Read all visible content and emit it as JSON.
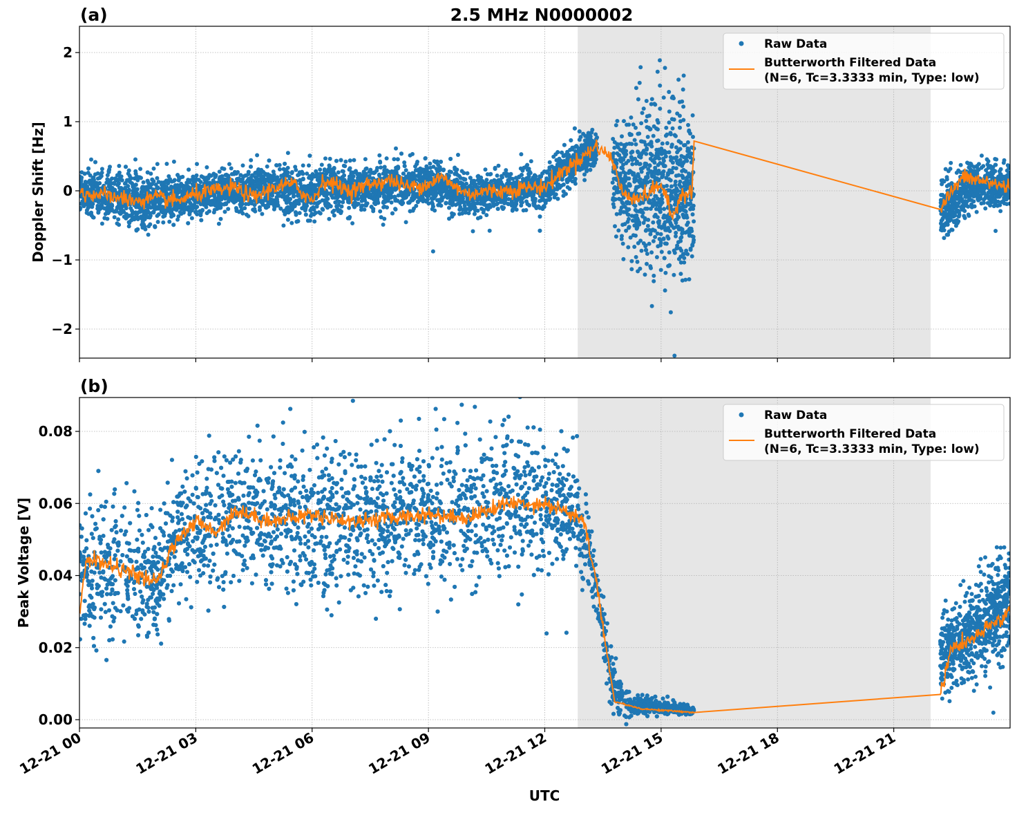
{
  "chart_data": [
    {
      "type": "scatter+line",
      "panel_label": "(a)",
      "title": "2.5 MHz N0000002",
      "xlabel": "",
      "ylabel": "Doppler Shift [Hz]",
      "xlim_hours": [
        0,
        24
      ],
      "ylim": [
        -2.42,
        2.38
      ],
      "yticks": [
        -2,
        -1,
        0,
        1,
        2
      ],
      "ytick_labels": [
        "−2",
        "−1",
        "0",
        "1",
        "2"
      ],
      "grid": true,
      "shaded_region_hours": [
        12.85,
        21.95
      ],
      "legend": {
        "placement": "top-right",
        "entries": [
          "Raw Data",
          "Butterworth Filtered Data",
          "(N=6, Tc=3.3333 min, Type: low)"
        ]
      },
      "raw_segments_hours": [
        [
          0,
          13.35
        ],
        [
          13.75,
          15.85
        ],
        [
          22.2,
          24
        ]
      ],
      "raw_envelope": [
        [
          0,
          0,
          0.3
        ],
        [
          1.5,
          -0.15,
          0.45
        ],
        [
          3,
          -0.05,
          0.3
        ],
        [
          5,
          0.05,
          0.35
        ],
        [
          6,
          -0.1,
          0.4
        ],
        [
          6.3,
          0.1,
          0.4
        ],
        [
          7,
          0,
          0.35
        ],
        [
          9,
          0.1,
          0.35
        ],
        [
          10,
          -0.05,
          0.3
        ],
        [
          12,
          0.05,
          0.3
        ],
        [
          13,
          0.5,
          0.35
        ],
        [
          13.35,
          0.6,
          0.3
        ],
        [
          13.75,
          0.3,
          0.7
        ],
        [
          14.3,
          0,
          1.2
        ],
        [
          15,
          0,
          1.4
        ],
        [
          15.85,
          0,
          1.2
        ],
        [
          22.2,
          -0.3,
          0.5
        ],
        [
          23,
          0.1,
          0.35
        ],
        [
          24,
          0.05,
          0.35
        ]
      ],
      "filtered": {
        "name": "Butterworth Filtered Data",
        "x": [
          0,
          0.5,
          1,
          1.5,
          2,
          2.5,
          3,
          3.5,
          4,
          4.5,
          5,
          5.5,
          6,
          6.3,
          7,
          7.5,
          8,
          8.5,
          9,
          9.3,
          10,
          10.5,
          11,
          11.5,
          12,
          12.5,
          13,
          13.35,
          13.75,
          14,
          14.5,
          15,
          15.3,
          15.5,
          15.8,
          15.85,
          22.2,
          22.5,
          22.8,
          24
        ],
        "y": [
          -0.05,
          -0.05,
          -0.1,
          -0.15,
          -0.1,
          -0.15,
          -0.05,
          0,
          0.05,
          -0.1,
          0.05,
          0.1,
          -0.15,
          0.15,
          0,
          0.1,
          0.15,
          0.05,
          0.1,
          0.2,
          -0.05,
          0,
          0,
          0.05,
          0.05,
          0.3,
          0.5,
          0.65,
          0.45,
          -0.05,
          -0.1,
          0.1,
          -0.4,
          -0.05,
          0,
          0.72,
          -0.27,
          0,
          0.2,
          0.05
        ]
      }
    },
    {
      "type": "scatter+line",
      "panel_label": "(b)",
      "xlabel": "UTC",
      "ylabel": "Peak Voltage [V]",
      "xlim_hours": [
        0,
        24
      ],
      "xticks_hours": [
        0,
        3,
        6,
        9,
        12,
        15,
        18,
        21
      ],
      "xtick_labels": [
        "12-21 00",
        "12-21 03",
        "12-21 06",
        "12-21 09",
        "12-21 12",
        "12-21 15",
        "12-21 18",
        "12-21 21"
      ],
      "ylim": [
        -0.0023,
        0.0894
      ],
      "yticks": [
        0,
        0.02,
        0.04,
        0.06,
        0.08
      ],
      "ytick_labels": [
        "0.00",
        "0.02",
        "0.04",
        "0.06",
        "0.08"
      ],
      "grid": true,
      "shaded_region_hours": [
        12.85,
        21.95
      ],
      "legend": {
        "placement": "top-right",
        "entries": [
          "Raw Data",
          "Butterworth Filtered Data",
          "(N=6, Tc=3.3333 min, Type: low)"
        ]
      },
      "raw_segments_hours": [
        [
          0,
          15.85
        ],
        [
          22.2,
          24
        ]
      ],
      "raw_envelope": [
        [
          0,
          0.04,
          0.02
        ],
        [
          1,
          0.042,
          0.022
        ],
        [
          2,
          0.04,
          0.017
        ],
        [
          2.5,
          0.05,
          0.02
        ],
        [
          3,
          0.055,
          0.02
        ],
        [
          4,
          0.057,
          0.02
        ],
        [
          6,
          0.055,
          0.022
        ],
        [
          9,
          0.056,
          0.022
        ],
        [
          11,
          0.06,
          0.022
        ],
        [
          12,
          0.06,
          0.02
        ],
        [
          12.8,
          0.058,
          0.018
        ],
        [
          13.3,
          0.04,
          0.01
        ],
        [
          13.75,
          0.008,
          0.008
        ],
        [
          14.3,
          0.004,
          0.003
        ],
        [
          15.85,
          0.0025,
          0.0015
        ],
        [
          22.2,
          0.018,
          0.012
        ],
        [
          23,
          0.024,
          0.013
        ],
        [
          24,
          0.032,
          0.016
        ]
      ],
      "filtered": {
        "name": "Butterworth Filtered Data",
        "x": [
          0,
          0.2,
          1,
          1.5,
          2,
          2.5,
          3,
          3.5,
          4,
          5,
          6,
          7,
          8,
          9,
          10,
          11,
          12,
          12.5,
          13,
          13.3,
          13.8,
          14.5,
          15.85,
          22.2,
          22.5,
          23,
          24
        ],
        "y": [
          0.03,
          0.045,
          0.042,
          0.04,
          0.038,
          0.05,
          0.055,
          0.052,
          0.058,
          0.055,
          0.057,
          0.055,
          0.056,
          0.057,
          0.056,
          0.06,
          0.06,
          0.058,
          0.055,
          0.04,
          0.005,
          0.003,
          0.002,
          0.007,
          0.02,
          0.022,
          0.03
        ]
      }
    }
  ],
  "colors": {
    "raw": "#1f77b4",
    "filtered": "#ff7f0e",
    "shade": "#e6e6e6",
    "grid": "#b0b0b0"
  }
}
